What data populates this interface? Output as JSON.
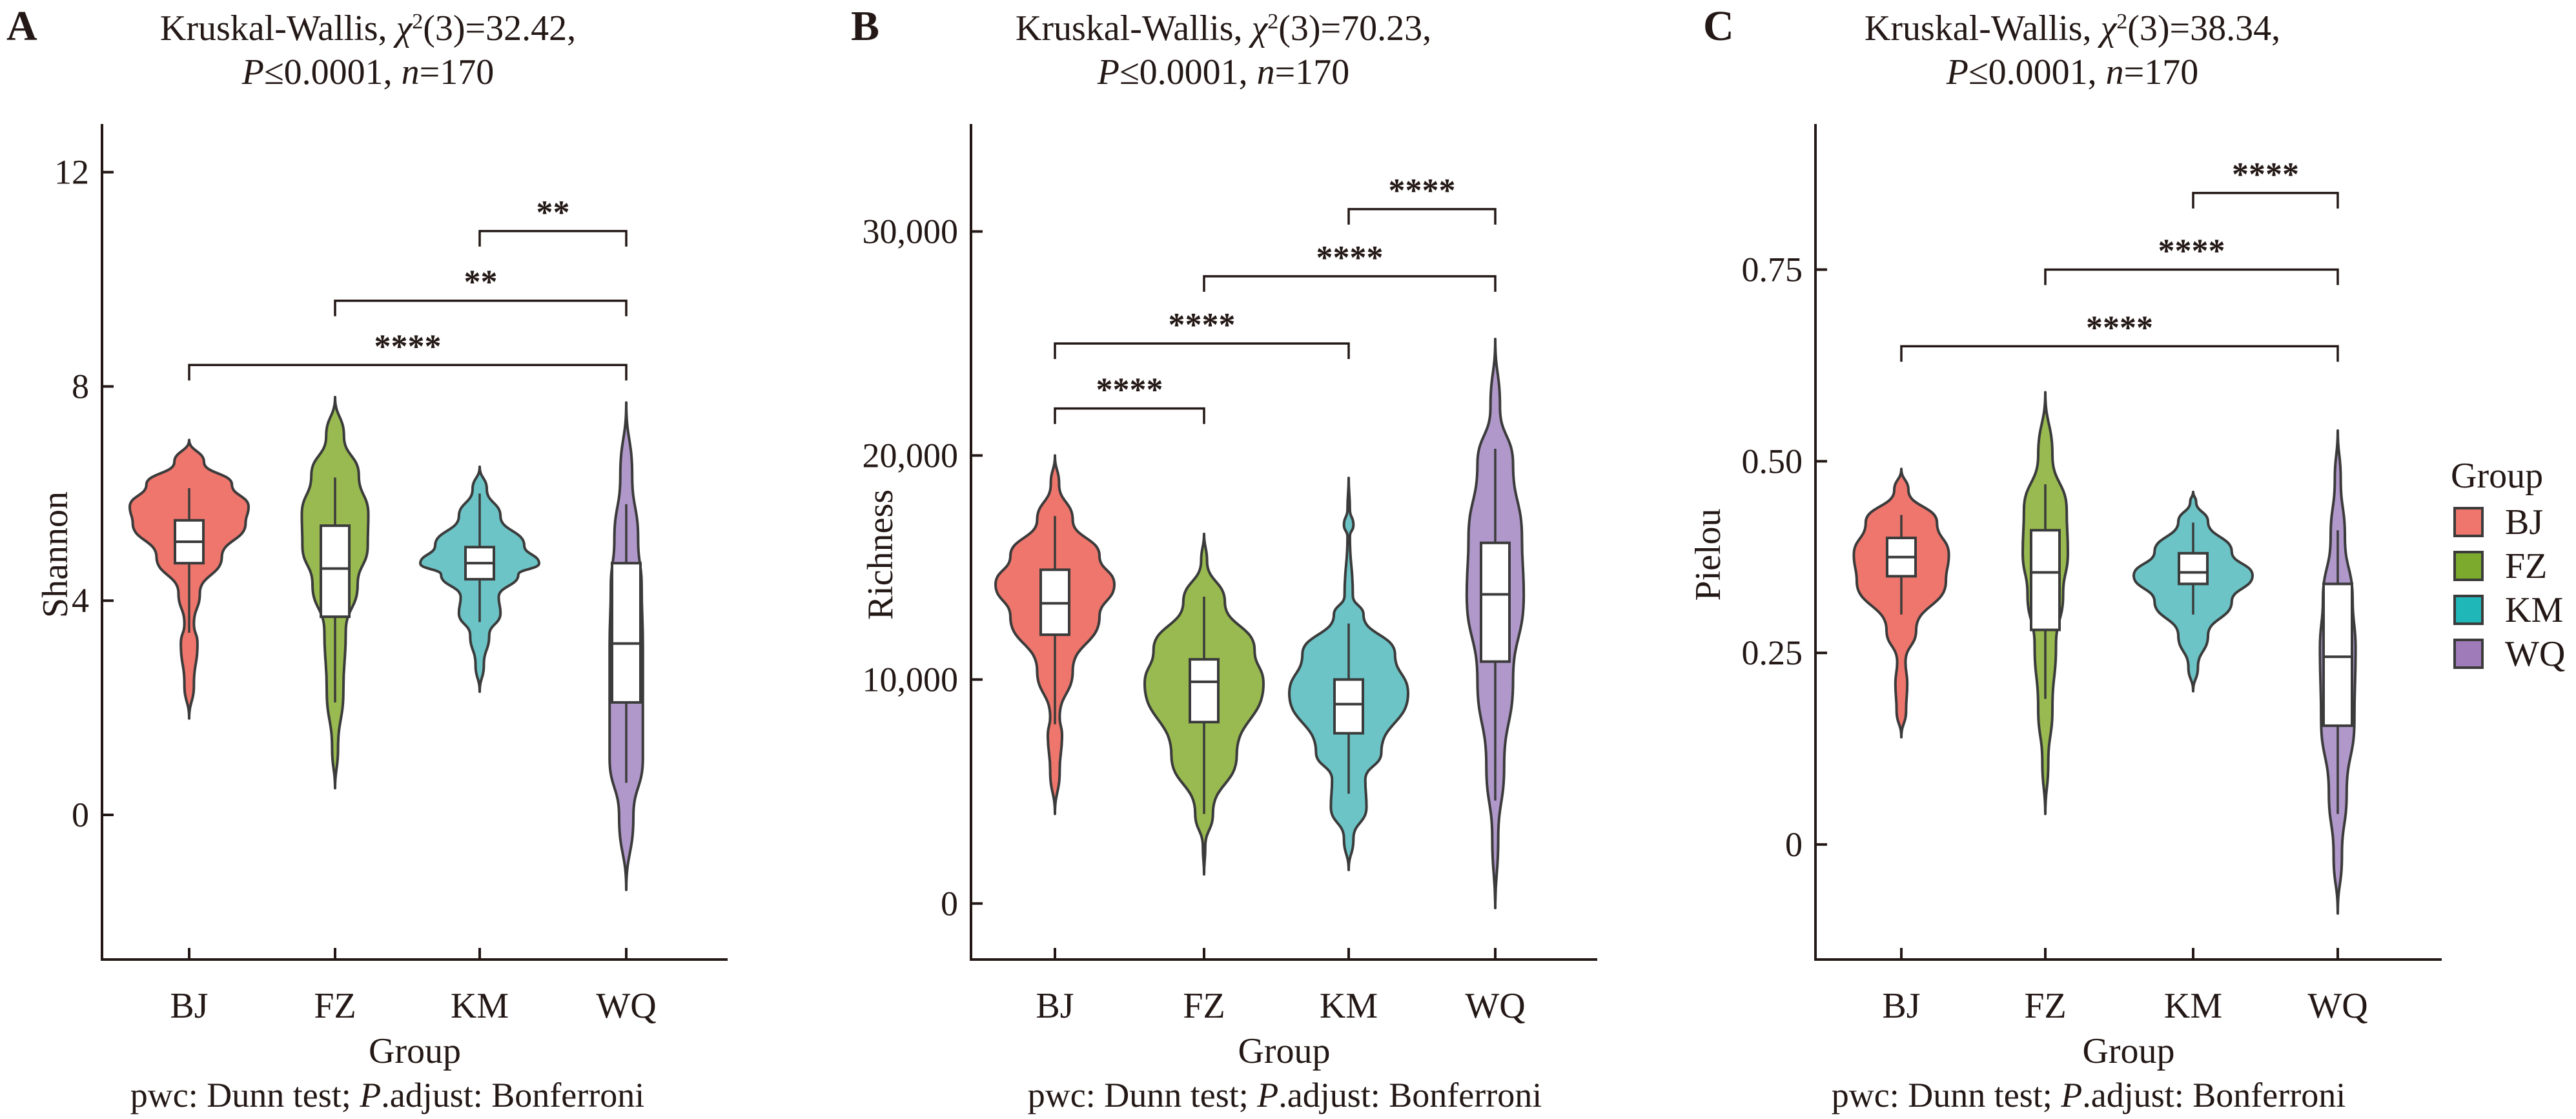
{
  "chart_data": [
    {
      "type": "violin",
      "panel_label": "A",
      "title_line1_prefix": "Kruskal-Wallis, ",
      "title_stat": "χ²(3)=32.42,",
      "title_line2": "P≤0.0001, n=170",
      "xlabel": "Group",
      "ylabel": "Shannon",
      "footnote": "pwc: Dunn test; P.adjust: Bonferroni",
      "ylim": [
        -2.7,
        12.9
      ],
      "yticks": [
        0,
        4,
        8,
        12
      ],
      "ytick_labels": [
        "0",
        "4",
        "8",
        "12"
      ],
      "categories": [
        "BJ",
        "FZ",
        "KM",
        "WQ"
      ],
      "groups": [
        {
          "name": "BJ",
          "violin_min": 1.8,
          "violin_max": 7.0,
          "whisker_low": 3.4,
          "q1": 4.7,
          "median": 5.1,
          "q3": 5.5,
          "whisker_high": 6.1
        },
        {
          "name": "FZ",
          "violin_min": 0.5,
          "violin_max": 7.8,
          "whisker_low": 2.1,
          "q1": 3.7,
          "median": 4.6,
          "q3": 5.4,
          "whisker_high": 6.3
        },
        {
          "name": "KM",
          "violin_min": 2.3,
          "violin_max": 6.5,
          "whisker_low": 3.6,
          "q1": 4.4,
          "median": 4.7,
          "q3": 5.0,
          "whisker_high": 6.0
        },
        {
          "name": "WQ",
          "violin_min": -1.4,
          "violin_max": 7.7,
          "whisker_low": 0.6,
          "q1": 2.1,
          "median": 3.2,
          "q3": 4.7,
          "whisker_high": 5.8
        }
      ],
      "comparisons": [
        {
          "from": "BJ",
          "to": "WQ",
          "label": "****",
          "y": 8.4
        },
        {
          "from": "FZ",
          "to": "WQ",
          "label": "**",
          "y": 9.6
        },
        {
          "from": "KM",
          "to": "WQ",
          "label": "**",
          "y": 10.9
        }
      ]
    },
    {
      "type": "violin",
      "panel_label": "B",
      "title_line1_prefix": "Kruskal-Wallis, ",
      "title_stat": "χ²(3)=70.23,",
      "title_line2": "P≤0.0001, n=170",
      "xlabel": "Group",
      "ylabel": "Richness",
      "footnote": "pwc: Dunn test; P.adjust: Bonferroni",
      "ylim": [
        -2500,
        34800
      ],
      "yticks": [
        0,
        10000,
        20000,
        30000
      ],
      "ytick_labels": [
        "0",
        "10,000",
        "20,000",
        "30,000"
      ],
      "categories": [
        "BJ",
        "FZ",
        "KM",
        "WQ"
      ],
      "groups": [
        {
          "name": "BJ",
          "violin_min": 4000,
          "violin_max": 20000,
          "whisker_low": 8000,
          "q1": 12000,
          "median": 13400,
          "q3": 14900,
          "whisker_high": 17300
        },
        {
          "name": "FZ",
          "violin_min": 1300,
          "violin_max": 16500,
          "whisker_low": 4000,
          "q1": 8100,
          "median": 9900,
          "q3": 10900,
          "whisker_high": 13700
        },
        {
          "name": "KM",
          "violin_min": 1500,
          "violin_max": 19000,
          "whisker_low": 4900,
          "q1": 7600,
          "median": 8900,
          "q3": 10000,
          "whisker_high": 12500
        },
        {
          "name": "WQ",
          "violin_min": -200,
          "violin_max": 25200,
          "whisker_low": 4600,
          "q1": 10800,
          "median": 13800,
          "q3": 16100,
          "whisker_high": 20300
        }
      ],
      "comparisons": [
        {
          "from": "BJ",
          "to": "FZ",
          "label": "****",
          "y": 22100
        },
        {
          "from": "BJ",
          "to": "KM",
          "label": "****",
          "y": 25000
        },
        {
          "from": "FZ",
          "to": "WQ",
          "label": "****",
          "y": 28000
        },
        {
          "from": "KM",
          "to": "WQ",
          "label": "****",
          "y": 31000
        }
      ]
    },
    {
      "type": "violin",
      "panel_label": "C",
      "title_line1_prefix": "Kruskal-Wallis, ",
      "title_stat": "χ²(3)=38.34,",
      "title_line2": "P≤0.0001, n=170",
      "xlabel": "Group",
      "ylabel": "Pielou",
      "footnote": "pwc: Dunn test; P.adjust: Bonferroni",
      "ylim": [
        -0.15,
        0.94
      ],
      "yticks": [
        0,
        0.25,
        0.5,
        0.75
      ],
      "ytick_labels": [
        "0",
        "0.25",
        "0.50",
        "0.75"
      ],
      "categories": [
        "BJ",
        "FZ",
        "KM",
        "WQ"
      ],
      "groups": [
        {
          "name": "BJ",
          "violin_min": 0.14,
          "violin_max": 0.49,
          "whisker_low": 0.3,
          "q1": 0.35,
          "median": 0.375,
          "q3": 0.4,
          "whisker_high": 0.43
        },
        {
          "name": "FZ",
          "violin_min": 0.04,
          "violin_max": 0.59,
          "whisker_low": 0.19,
          "q1": 0.28,
          "median": 0.355,
          "q3": 0.41,
          "whisker_high": 0.47
        },
        {
          "name": "KM",
          "violin_min": 0.2,
          "violin_max": 0.46,
          "whisker_low": 0.3,
          "q1": 0.34,
          "median": 0.355,
          "q3": 0.38,
          "whisker_high": 0.42
        },
        {
          "name": "WQ",
          "violin_min": -0.09,
          "violin_max": 0.54,
          "whisker_low": 0.04,
          "q1": 0.155,
          "median": 0.245,
          "q3": 0.34,
          "whisker_high": 0.41
        }
      ],
      "comparisons": [
        {
          "from": "BJ",
          "to": "WQ",
          "label": "****",
          "y": 0.65
        },
        {
          "from": "FZ",
          "to": "WQ",
          "label": "****",
          "y": 0.75
        },
        {
          "from": "KM",
          "to": "WQ",
          "label": "****",
          "y": 0.85
        }
      ]
    }
  ],
  "legend": {
    "title": "Group",
    "placement": "right",
    "items": [
      {
        "label": "BJ",
        "color": "#EE766C"
      },
      {
        "label": "FZ",
        "color": "#7CAA2D"
      },
      {
        "label": "KM",
        "color": "#20B7B8"
      },
      {
        "label": "WQ",
        "color": "#A07BBA"
      }
    ]
  },
  "violin_colors": {
    "BJ": "#EE766C",
    "FZ": "#98BA50",
    "KM": "#6CC4C6",
    "WQ": "#B098CA"
  },
  "outline_color": "#3B3B3B"
}
